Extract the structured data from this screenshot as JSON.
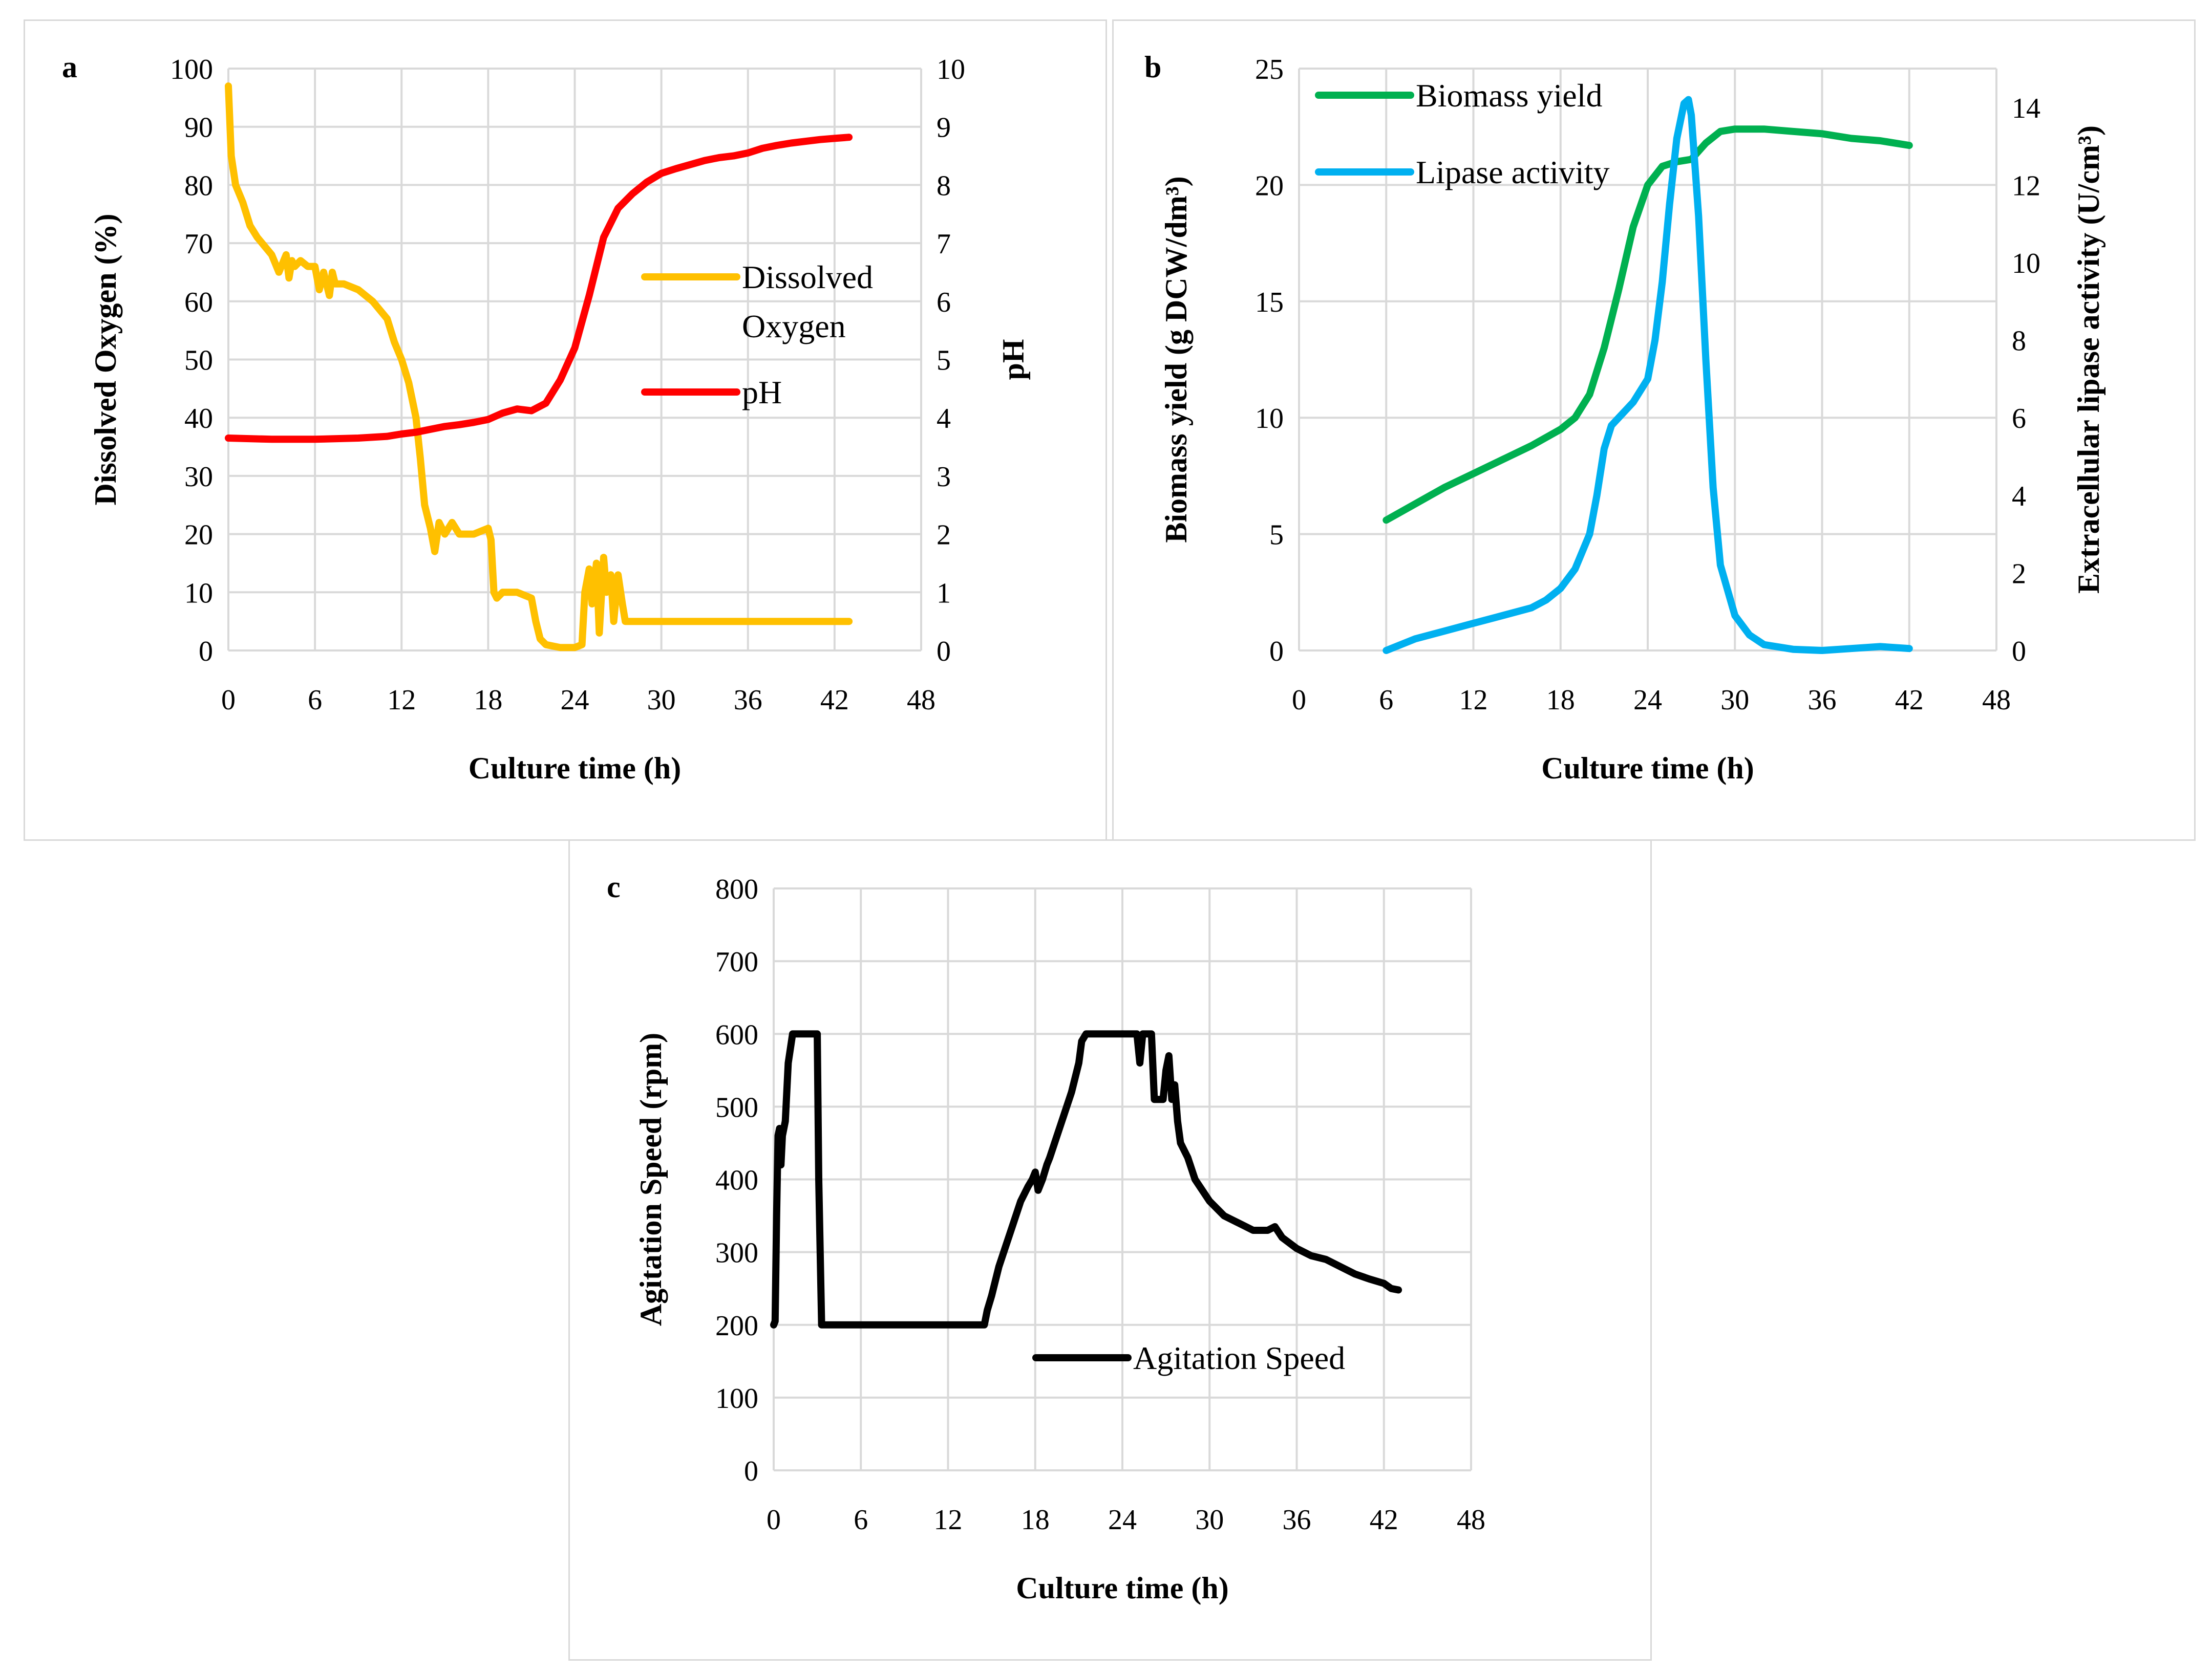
{
  "chart_data": [
    {
      "panel": "a",
      "type": "line",
      "xlabel": "Culture time (h)",
      "ylabel": "Dissolved Oxygen (%)",
      "y2label": "pH",
      "xlim": [
        0,
        48
      ],
      "xticks": [
        0,
        6,
        12,
        18,
        24,
        30,
        36,
        42,
        48
      ],
      "ylim": [
        0,
        100
      ],
      "yticks": [
        0,
        10,
        20,
        30,
        40,
        50,
        60,
        70,
        80,
        90,
        100
      ],
      "y2lim": [
        0,
        10
      ],
      "y2ticks": [
        0,
        1,
        2,
        3,
        4,
        5,
        6,
        7,
        8,
        9,
        10
      ],
      "grid": true,
      "legend_position": "middle-right",
      "series": [
        {
          "name": "Dissolved Oxygen",
          "axis": "left",
          "color": "#FFC000",
          "x": [
            0,
            0.2,
            0.5,
            1,
            1.5,
            2,
            3,
            3.5,
            4,
            4.2,
            4.4,
            4.6,
            5,
            5.5,
            6,
            6.3,
            6.6,
            7,
            7.2,
            7.4,
            8,
            9,
            10,
            11,
            11.5,
            12,
            12.5,
            13,
            13.3,
            13.6,
            14,
            14.3,
            14.6,
            15,
            15.5,
            16,
            17,
            18,
            18.2,
            18.4,
            18.6,
            19,
            20,
            21,
            21.3,
            21.6,
            22,
            23,
            23.5,
            24,
            24.5,
            24.7,
            25,
            25.2,
            25.5,
            25.7,
            26,
            26.2,
            26.5,
            26.7,
            27,
            27.3,
            27.5,
            28,
            30,
            32,
            34,
            36,
            38,
            40,
            42,
            43
          ],
          "y": [
            97,
            85,
            80,
            77,
            73,
            71,
            68,
            65,
            68,
            64,
            67,
            66,
            67,
            66,
            66,
            62,
            65,
            61,
            65,
            63,
            63,
            62,
            60,
            57,
            53,
            50,
            46,
            40,
            33,
            25,
            21,
            17,
            22,
            20,
            22,
            20,
            20,
            21,
            19,
            10,
            9,
            10,
            10,
            9,
            5,
            2,
            1,
            0.5,
            0.5,
            0.5,
            1,
            10,
            14,
            8,
            15,
            3,
            16,
            10,
            13,
            5,
            13,
            8,
            5,
            5,
            5,
            5,
            5,
            5,
            5,
            5,
            5,
            5
          ]
        },
        {
          "name": "pH",
          "axis": "right",
          "color": "#FF0000",
          "x": [
            0,
            3,
            6,
            9,
            11,
            12,
            13,
            14,
            15,
            16,
            17,
            18,
            19,
            20,
            21,
            22,
            23,
            24,
            25,
            26,
            27,
            28,
            29,
            30,
            31,
            32,
            33,
            34,
            35,
            36,
            37,
            38,
            39,
            40,
            41,
            42,
            43
          ],
          "y": [
            3.65,
            3.63,
            3.63,
            3.65,
            3.68,
            3.72,
            3.75,
            3.8,
            3.85,
            3.88,
            3.92,
            3.97,
            4.08,
            4.15,
            4.12,
            4.25,
            4.65,
            5.2,
            6.1,
            7.1,
            7.6,
            7.85,
            8.05,
            8.2,
            8.28,
            8.35,
            8.42,
            8.47,
            8.5,
            8.55,
            8.63,
            8.68,
            8.72,
            8.75,
            8.78,
            8.8,
            8.82
          ]
        }
      ]
    },
    {
      "panel": "b",
      "type": "line",
      "xlabel": "Culture time (h)",
      "ylabel": "Biomass yield (g DCW/dm³)",
      "y2label": "Extracellular lipase activity (U/cm³)",
      "xlim": [
        0,
        48
      ],
      "xticks": [
        0,
        6,
        12,
        18,
        24,
        30,
        36,
        42,
        48
      ],
      "ylim": [
        0,
        25
      ],
      "yticks": [
        0,
        5,
        10,
        15,
        20,
        25
      ],
      "y2lim": [
        0,
        15
      ],
      "y2ticks": [
        0,
        2,
        4,
        6,
        8,
        10,
        12,
        14
      ],
      "grid": true,
      "legend_position": "top-left",
      "series": [
        {
          "name": "Biomass yield",
          "axis": "left",
          "color": "#00B050",
          "x": [
            6,
            8,
            10,
            12,
            14,
            16,
            18,
            19,
            20,
            21,
            22,
            23,
            24,
            25,
            26,
            27,
            28,
            29,
            30,
            32,
            34,
            36,
            38,
            40,
            42
          ],
          "y": [
            5.6,
            6.3,
            7,
            7.6,
            8.2,
            8.8,
            9.5,
            10,
            11,
            13,
            15.5,
            18.2,
            20,
            20.8,
            21,
            21.1,
            21.8,
            22.3,
            22.4,
            22.4,
            22.3,
            22.2,
            22,
            21.9,
            21.7
          ]
        },
        {
          "name": "Lipase activity",
          "axis": "right",
          "color": "#00B0F0",
          "x": [
            6,
            8,
            10,
            12,
            14,
            16,
            17,
            18,
            19,
            20,
            20.5,
            21,
            21.5,
            22,
            23,
            24,
            24.5,
            25,
            25.5,
            26,
            26.5,
            26.8,
            27,
            27.5,
            28,
            28.5,
            29,
            30,
            31,
            32,
            34,
            36,
            38,
            40,
            42
          ],
          "y": [
            0,
            0.3,
            0.5,
            0.7,
            0.9,
            1.1,
            1.3,
            1.6,
            2.1,
            3,
            4,
            5.2,
            5.8,
            6,
            6.4,
            7,
            8,
            9.5,
            11.5,
            13.2,
            14.1,
            14.2,
            13.8,
            11.2,
            7.5,
            4.2,
            2.2,
            0.9,
            0.4,
            0.15,
            0.03,
            0,
            0.05,
            0.1,
            0.05
          ]
        }
      ]
    },
    {
      "panel": "c",
      "type": "line",
      "xlabel": "Culture time (h)",
      "ylabel": "Agitation Speed (rpm)",
      "xlim": [
        0,
        48
      ],
      "xticks": [
        0,
        6,
        12,
        18,
        24,
        30,
        36,
        42,
        48
      ],
      "ylim": [
        0,
        800
      ],
      "yticks": [
        0,
        100,
        200,
        300,
        400,
        500,
        600,
        700,
        800
      ],
      "grid": true,
      "legend_position": "middle",
      "series": [
        {
          "name": "Agitation Speed",
          "color": "#000000",
          "x": [
            0,
            0.1,
            0.2,
            0.3,
            0.4,
            0.5,
            0.6,
            0.8,
            1,
            1.3,
            2,
            3,
            3.1,
            3.3,
            4,
            8,
            12,
            14.5,
            14.7,
            15,
            15.5,
            16,
            16.5,
            17,
            17.5,
            17.8,
            18,
            18.2,
            18.5,
            18.8,
            19,
            19.5,
            20,
            20.5,
            21,
            21.2,
            21.5,
            24,
            25,
            25.2,
            25.4,
            25.6,
            26,
            26.2,
            26.5,
            26.8,
            27,
            27.2,
            27.4,
            27.6,
            27.8,
            28,
            28.5,
            29,
            30,
            31,
            32,
            33,
            34,
            34.5,
            35,
            36,
            37,
            38,
            39,
            40,
            41,
            42,
            42.5,
            43
          ],
          "y": [
            200,
            205,
            350,
            460,
            470,
            420,
            460,
            480,
            560,
            600,
            600,
            600,
            400,
            200,
            200,
            200,
            200,
            200,
            220,
            240,
            280,
            310,
            340,
            370,
            390,
            400,
            410,
            385,
            400,
            420,
            430,
            460,
            490,
            520,
            560,
            590,
            600,
            600,
            600,
            560,
            600,
            600,
            600,
            510,
            510,
            510,
            550,
            570,
            510,
            530,
            480,
            450,
            430,
            400,
            370,
            350,
            340,
            330,
            330,
            335,
            320,
            305,
            295,
            290,
            280,
            270,
            263,
            257,
            250,
            248
          ]
        }
      ]
    }
  ]
}
